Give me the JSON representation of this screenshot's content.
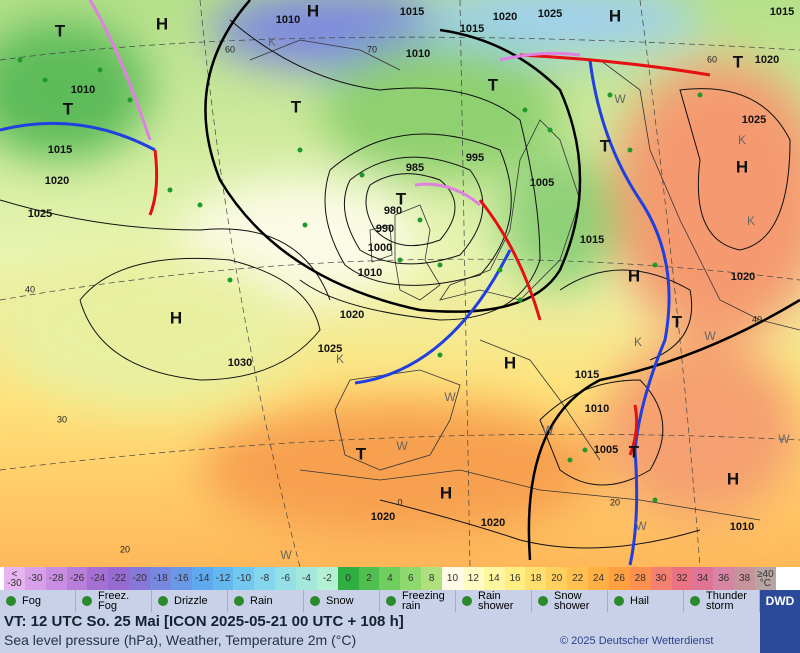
{
  "map": {
    "pressure_labels": [
      "1010",
      "1015",
      "1020",
      "1025",
      "1015",
      "1015",
      "1010",
      "1020",
      "1010",
      "1015",
      "1020",
      "1025",
      "1025",
      "985",
      "995",
      "1005",
      "980",
      "990",
      "1000",
      "1010",
      "1015",
      "1020",
      "1020",
      "1025",
      "1030",
      "1015",
      "1010",
      "1005",
      "1020",
      "1020",
      "1010"
    ],
    "isotherm_labels": [
      "60",
      "70",
      "60",
      "40",
      "30",
      "20",
      "0",
      "20",
      "40"
    ],
    "systems": [
      "T",
      "H",
      "H",
      "H",
      "T",
      "T",
      "T",
      "T",
      "H",
      "T",
      "H",
      "H",
      "T",
      "H",
      "T",
      "H",
      "H",
      "T",
      "T"
    ],
    "air_mass_labels": [
      "K",
      "K",
      "K",
      "K",
      "K",
      "W",
      "W",
      "W",
      "W",
      "W",
      "W",
      "W",
      "W"
    ]
  },
  "scale": {
    "labels": [
      "<\n-30",
      -30,
      -28,
      -26,
      -24,
      -22,
      -20,
      -18,
      -16,
      -14,
      -12,
      -10,
      -8,
      -6,
      -4,
      -2,
      0,
      2,
      4,
      6,
      8,
      10,
      12,
      14,
      16,
      18,
      20,
      22,
      24,
      26,
      28,
      30,
      32,
      34,
      36,
      38,
      "≥40\n°C"
    ],
    "colors": [
      "#e6b4f0",
      "#d9a0ea",
      "#c98ee2",
      "#b87ed9",
      "#a66fd2",
      "#966ad0",
      "#8578d8",
      "#7788e0",
      "#6898e6",
      "#5fa9ee",
      "#63b8f0",
      "#72c8f0",
      "#84d6ee",
      "#94e0e6",
      "#a4e8dc",
      "#b4f0d4",
      "#2fae42",
      "#4fbf4f",
      "#6fcf5e",
      "#8fd86e",
      "#aee17e",
      "#fffbe6",
      "#fffbc2",
      "#fff6a0",
      "#ffee84",
      "#ffe06e",
      "#ffd05e",
      "#ffc050",
      "#ffb044",
      "#ffa040",
      "#ff9050",
      "#f48072",
      "#ea7282",
      "#e07494",
      "#d884a4",
      "#c8949c",
      "#b8a4a4"
    ]
  },
  "legend": [
    "Fog",
    "Freez.\nFog",
    "Drizzle",
    "Rain",
    "Snow",
    "Freezing\nrain",
    "Rain\nshower",
    "Snow\nshower",
    "Hail",
    "Thunder\nstorm"
  ],
  "footer": {
    "valid_time": "VT: 12 UTC So.  25 Mai [ICON 2025-05-21  00 UTC + 108 h]",
    "description": "Sea level pressure (hPa), Weather, Temperature 2m (°C)",
    "copyright": "© 2025 Deutscher Wetterdienst",
    "logo": "DWD"
  }
}
